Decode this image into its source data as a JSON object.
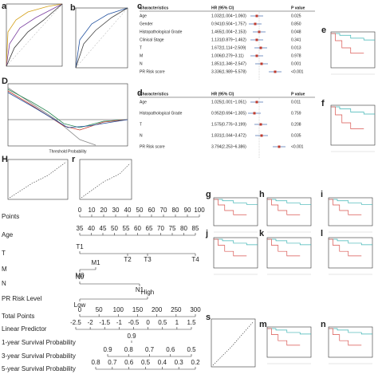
{
  "panel_labels": {
    "a": "a",
    "b": "b",
    "c": "c",
    "e": "e",
    "D": "D",
    "d": "d",
    "f": "f",
    "H": "H",
    "r": "r",
    "g": "g",
    "h": "h",
    "i": "i",
    "j": "j",
    "k": "k",
    "l": "l",
    "s": "s",
    "m": "m",
    "n": "n"
  },
  "decision_axis_label": "Threshold Probability",
  "forest_univariate": {
    "header": [
      "Characteristics",
      "HR (95% CI)",
      "P value"
    ],
    "rows": [
      [
        "Age",
        "1.032(1.004~1.060)",
        "0.025"
      ],
      [
        "Gender",
        "0.941(0.504~1.757)",
        "0.850"
      ],
      [
        "Histopathological Grade",
        "1.465(1.004~2.153)",
        "0.048"
      ],
      [
        "Clinical Stage",
        "1.131(0.879~1.462)",
        "0.341"
      ],
      [
        "T",
        "1.672(1.114~2.509)",
        "0.013"
      ],
      [
        "M",
        "1.006(0.279~3.11)",
        "0.978"
      ],
      [
        "N",
        "1.851(1.346~2.547)",
        "0.001"
      ],
      [
        "PR Risk score",
        "3.336(1.989~5.578)",
        "<0.001"
      ]
    ]
  },
  "forest_multivariate": {
    "header": [
      "Characteristics",
      "HR (95% CI)",
      "P value"
    ],
    "rows": [
      [
        "Age",
        "1.025(1.001~1.051)",
        "0.011"
      ],
      [
        "Histopathological Grade",
        "0.952(0.694~1.305)",
        "0.759"
      ],
      [
        "T",
        "1.575(0.776~3.199)",
        "0.208"
      ],
      [
        "N",
        "1.831(1.044~3.472)",
        "0.035"
      ],
      [
        "PR Risk score",
        "3.794(2.253~6.386)",
        "<0.001"
      ]
    ]
  },
  "nomogram": {
    "rows": [
      {
        "label": "Points",
        "ticks": [
          "0",
          "10",
          "20",
          "30",
          "40",
          "50",
          "60",
          "70",
          "80",
          "90",
          "100"
        ]
      },
      {
        "label": "Age",
        "ticks": [
          "35",
          "40",
          "45",
          "50",
          "55",
          "60",
          "65",
          "70",
          "75",
          "80",
          "85"
        ]
      },
      {
        "label": "T",
        "ticks": [
          "T1",
          "T2",
          "T3",
          "T4"
        ]
      },
      {
        "label": "M",
        "ticks": [
          "M0",
          "M1"
        ]
      },
      {
        "label": "N",
        "ticks": [
          "N0",
          "N1"
        ]
      },
      {
        "label": "PR Risk Level",
        "ticks": [
          "Low",
          "High"
        ]
      },
      {
        "label": "Total Points",
        "ticks": [
          "0",
          "50",
          "100",
          "150",
          "200",
          "250",
          "300"
        ]
      },
      {
        "label": "Linear Predictor",
        "ticks": [
          "-2.5",
          "-2",
          "-1.5",
          "-1",
          "-0.5",
          "0",
          "0.5",
          "1",
          "1.5"
        ]
      },
      {
        "label": "1-year Survival Probability",
        "ticks": [
          "0.9"
        ]
      },
      {
        "label": "3-year Survival Probability",
        "ticks": [
          "0.9",
          "0.8",
          "0.7",
          "0.6",
          "0.5"
        ]
      },
      {
        "label": "5-year Survival Probability",
        "ticks": [
          "0.8",
          "0.7",
          "0.6",
          "0.5",
          "0.4",
          "0.3",
          "0.2"
        ]
      }
    ]
  }
}
